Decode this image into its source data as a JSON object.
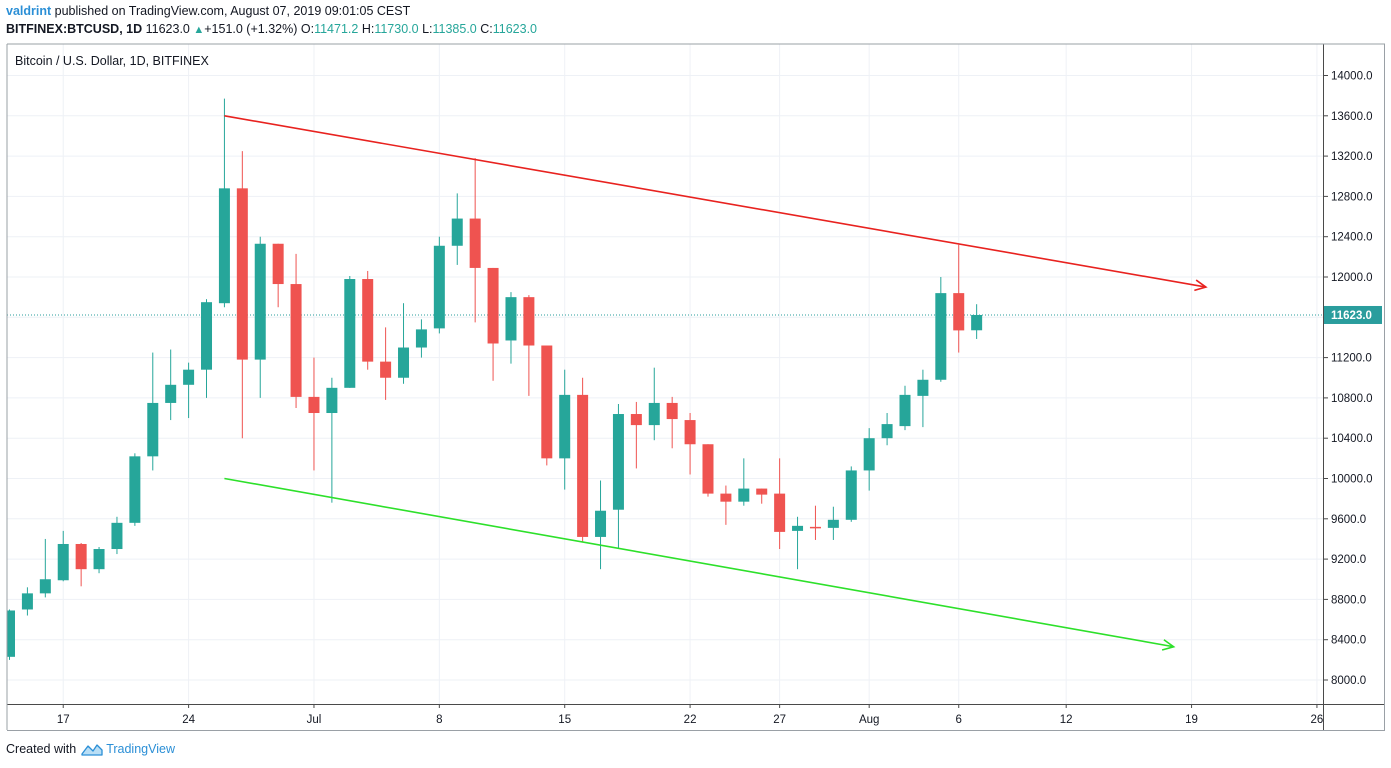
{
  "header": {
    "user": "valdrint",
    "published_text": "published on TradingView.com, August 07, 2019 09:01:05 CEST",
    "symbol": "BITFINEX:BTCUSD, 1D",
    "last": "11623.0",
    "change": "+151.0 (+1.32%)",
    "o_label": "O:",
    "o": "11471.2",
    "h_label": "H:",
    "h": "11730.0",
    "l_label": "L:",
    "l": "11385.0",
    "c_label": "C:",
    "c": "11623.0"
  },
  "footer": {
    "created_with": "Created with",
    "brand": "TradingView"
  },
  "colors": {
    "up": "#26a69a",
    "down": "#ef5350",
    "resistance": "#e8221f",
    "support": "#2de02a",
    "price_line": "#2a9d9d",
    "grid": "#eef1f6",
    "axis": "#4a4a4a"
  },
  "chart_data": {
    "type": "candlestick",
    "title": "Bitcoin / U.S. Dollar, 1D, BITFINEX",
    "y_ticks": [
      8000,
      8400,
      8800,
      9200,
      9600,
      10000,
      10400,
      10800,
      11200,
      11600,
      12000,
      12400,
      12800,
      13200,
      13600,
      14000
    ],
    "y_tick_labels": [
      "8000.0",
      "8400.0",
      "8800.0",
      "9200.0",
      "9600.0",
      "10000.0",
      "10400.0",
      "10800.0",
      "11200.0",
      "11600.0",
      "12000.0",
      "12400.0",
      "12800.0",
      "13200.0",
      "13600.0",
      "14000.0"
    ],
    "ylim": [
      7780,
      14400
    ],
    "x_ticks": [
      {
        "day": 3,
        "label": "17"
      },
      {
        "day": 10,
        "label": "24"
      },
      {
        "day": 17,
        "label": "Jul"
      },
      {
        "day": 24,
        "label": "8"
      },
      {
        "day": 31,
        "label": "15"
      },
      {
        "day": 38,
        "label": "22"
      },
      {
        "day": 43,
        "label": "27"
      },
      {
        "day": 48,
        "label": "Aug"
      },
      {
        "day": 53,
        "label": "6"
      },
      {
        "day": 59,
        "label": "12"
      },
      {
        "day": 66,
        "label": "19"
      },
      {
        "day": 73,
        "label": "26"
      }
    ],
    "x_range": [
      -0.3,
      73.2
    ],
    "last_price": 11623.0,
    "last_price_label": "11623.0",
    "candles": [
      {
        "day": 0,
        "date": "2019-06-14",
        "o": 8230,
        "h": 8700,
        "l": 8200,
        "c": 8690
      },
      {
        "day": 1,
        "date": "2019-06-15",
        "o": 8700,
        "h": 8920,
        "l": 8640,
        "c": 8860
      },
      {
        "day": 2,
        "date": "2019-06-16",
        "o": 8860,
        "h": 9400,
        "l": 8820,
        "c": 9000
      },
      {
        "day": 3,
        "date": "2019-06-17",
        "o": 8990,
        "h": 9480,
        "l": 8980,
        "c": 9350
      },
      {
        "day": 4,
        "date": "2019-06-18",
        "o": 9350,
        "h": 9360,
        "l": 8930,
        "c": 9100
      },
      {
        "day": 5,
        "date": "2019-06-19",
        "o": 9100,
        "h": 9320,
        "l": 9060,
        "c": 9300
      },
      {
        "day": 6,
        "date": "2019-06-20",
        "o": 9300,
        "h": 9620,
        "l": 9250,
        "c": 9560
      },
      {
        "day": 7,
        "date": "2019-06-21",
        "o": 9560,
        "h": 10250,
        "l": 9530,
        "c": 10220
      },
      {
        "day": 8,
        "date": "2019-06-22",
        "o": 10220,
        "h": 11250,
        "l": 10080,
        "c": 10750
      },
      {
        "day": 9,
        "date": "2019-06-23",
        "o": 10750,
        "h": 11280,
        "l": 10580,
        "c": 10930
      },
      {
        "day": 10,
        "date": "2019-06-24",
        "o": 10930,
        "h": 11150,
        "l": 10600,
        "c": 11080
      },
      {
        "day": 11,
        "date": "2019-06-25",
        "o": 11080,
        "h": 11780,
        "l": 10800,
        "c": 11750
      },
      {
        "day": 12,
        "date": "2019-06-26",
        "o": 11740,
        "h": 13770,
        "l": 11700,
        "c": 12880
      },
      {
        "day": 13,
        "date": "2019-06-27",
        "o": 12880,
        "h": 13250,
        "l": 10400,
        "c": 11180
      },
      {
        "day": 14,
        "date": "2019-06-28",
        "o": 11180,
        "h": 12400,
        "l": 10800,
        "c": 12330
      },
      {
        "day": 15,
        "date": "2019-06-29",
        "o": 12330,
        "h": 12330,
        "l": 11700,
        "c": 11930
      },
      {
        "day": 16,
        "date": "2019-06-30",
        "o": 11930,
        "h": 12230,
        "l": 10700,
        "c": 10810
      },
      {
        "day": 17,
        "date": "2019-07-01",
        "o": 10810,
        "h": 11200,
        "l": 10080,
        "c": 10650
      },
      {
        "day": 18,
        "date": "2019-07-02",
        "o": 10650,
        "h": 11000,
        "l": 9760,
        "c": 10900
      },
      {
        "day": 19,
        "date": "2019-07-03",
        "o": 10900,
        "h": 12010,
        "l": 10900,
        "c": 11980
      },
      {
        "day": 20,
        "date": "2019-07-04",
        "o": 11980,
        "h": 12060,
        "l": 11080,
        "c": 11160
      },
      {
        "day": 21,
        "date": "2019-07-05",
        "o": 11160,
        "h": 11500,
        "l": 10780,
        "c": 11000
      },
      {
        "day": 22,
        "date": "2019-07-06",
        "o": 11000,
        "h": 11740,
        "l": 10940,
        "c": 11300
      },
      {
        "day": 23,
        "date": "2019-07-07",
        "o": 11300,
        "h": 11580,
        "l": 11200,
        "c": 11480
      },
      {
        "day": 24,
        "date": "2019-07-08",
        "o": 11490,
        "h": 12400,
        "l": 11440,
        "c": 12310
      },
      {
        "day": 25,
        "date": "2019-07-09",
        "o": 12310,
        "h": 12830,
        "l": 12120,
        "c": 12580
      },
      {
        "day": 26,
        "date": "2019-07-10",
        "o": 12580,
        "h": 13180,
        "l": 11550,
        "c": 12090
      },
      {
        "day": 27,
        "date": "2019-07-11",
        "o": 12090,
        "h": 12090,
        "l": 10970,
        "c": 11340
      },
      {
        "day": 28,
        "date": "2019-07-12",
        "o": 11370,
        "h": 11850,
        "l": 11140,
        "c": 11800
      },
      {
        "day": 29,
        "date": "2019-07-13",
        "o": 11800,
        "h": 11820,
        "l": 10820,
        "c": 11320
      },
      {
        "day": 30,
        "date": "2019-07-14",
        "o": 11320,
        "h": 11320,
        "l": 10130,
        "c": 10200
      },
      {
        "day": 31,
        "date": "2019-07-15",
        "o": 10200,
        "h": 11080,
        "l": 9890,
        "c": 10830
      },
      {
        "day": 32,
        "date": "2019-07-16",
        "o": 10830,
        "h": 11000,
        "l": 9370,
        "c": 9420
      },
      {
        "day": 33,
        "date": "2019-07-17",
        "o": 9420,
        "h": 9980,
        "l": 9100,
        "c": 9680
      },
      {
        "day": 34,
        "date": "2019-07-18",
        "o": 9690,
        "h": 10740,
        "l": 9300,
        "c": 10640
      },
      {
        "day": 35,
        "date": "2019-07-19",
        "o": 10640,
        "h": 10760,
        "l": 10100,
        "c": 10530
      },
      {
        "day": 36,
        "date": "2019-07-20",
        "o": 10530,
        "h": 11100,
        "l": 10380,
        "c": 10750
      },
      {
        "day": 37,
        "date": "2019-07-21",
        "o": 10750,
        "h": 10810,
        "l": 10300,
        "c": 10590
      },
      {
        "day": 38,
        "date": "2019-07-22",
        "o": 10580,
        "h": 10650,
        "l": 10040,
        "c": 10340
      },
      {
        "day": 39,
        "date": "2019-07-23",
        "o": 10340,
        "h": 10340,
        "l": 9820,
        "c": 9850
      },
      {
        "day": 40,
        "date": "2019-07-24",
        "o": 9850,
        "h": 9930,
        "l": 9540,
        "c": 9770
      },
      {
        "day": 41,
        "date": "2019-07-25",
        "o": 9770,
        "h": 10200,
        "l": 9730,
        "c": 9900
      },
      {
        "day": 42,
        "date": "2019-07-26",
        "o": 9900,
        "h": 9900,
        "l": 9750,
        "c": 9840
      },
      {
        "day": 43,
        "date": "2019-07-27",
        "o": 9850,
        "h": 10200,
        "l": 9300,
        "c": 9470
      },
      {
        "day": 44,
        "date": "2019-07-28",
        "o": 9480,
        "h": 9620,
        "l": 9100,
        "c": 9530
      },
      {
        "day": 45,
        "date": "2019-07-29",
        "o": 9520,
        "h": 9730,
        "l": 9390,
        "c": 9510
      },
      {
        "day": 46,
        "date": "2019-07-30",
        "o": 9510,
        "h": 9720,
        "l": 9390,
        "c": 9590
      },
      {
        "day": 47,
        "date": "2019-07-31",
        "o": 9590,
        "h": 10120,
        "l": 9570,
        "c": 10080
      },
      {
        "day": 48,
        "date": "2019-08-01",
        "o": 10080,
        "h": 10500,
        "l": 9880,
        "c": 10400
      },
      {
        "day": 49,
        "date": "2019-08-02",
        "o": 10400,
        "h": 10650,
        "l": 10330,
        "c": 10540
      },
      {
        "day": 50,
        "date": "2019-08-03",
        "o": 10520,
        "h": 10920,
        "l": 10480,
        "c": 10830
      },
      {
        "day": 51,
        "date": "2019-08-04",
        "o": 10820,
        "h": 11080,
        "l": 10510,
        "c": 10980
      },
      {
        "day": 52,
        "date": "2019-08-05",
        "o": 10980,
        "h": 12000,
        "l": 10960,
        "c": 11840
      },
      {
        "day": 53,
        "date": "2019-08-06",
        "o": 11840,
        "h": 12320,
        "l": 11250,
        "c": 11470
      },
      {
        "day": 54,
        "date": "2019-08-07",
        "o": 11471.2,
        "h": 11730,
        "l": 11385,
        "c": 11623
      }
    ],
    "trendlines": [
      {
        "name": "resistance",
        "from": {
          "day": 12,
          "price": 13600
        },
        "to": {
          "day": 66.8,
          "price": 11900
        },
        "arrow": true
      },
      {
        "name": "support",
        "from": {
          "day": 12,
          "price": 10000
        },
        "to": {
          "day": 65,
          "price": 8330
        },
        "arrow": true
      }
    ]
  }
}
